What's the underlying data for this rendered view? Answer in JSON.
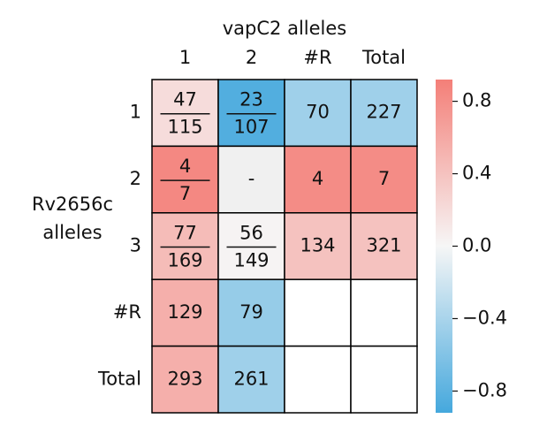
{
  "chart_data": {
    "type": "heatmap",
    "title": "vapC2 alleles",
    "ylabel": [
      "Rv2656c",
      "alleles"
    ],
    "columns": [
      "1",
      "2",
      "#R",
      "Total"
    ],
    "rows": [
      "1",
      "2",
      "3",
      "#R",
      "Total"
    ],
    "cells": [
      [
        {
          "numerator": 47,
          "denominator": 115
        },
        {
          "numerator": 23,
          "denominator": 107
        },
        70,
        227
      ],
      [
        {
          "numerator": 4,
          "denominator": 7
        },
        "-",
        4,
        7
      ],
      [
        {
          "numerator": 77,
          "denominator": 169
        },
        {
          "numerator": 56,
          "denominator": 149
        },
        134,
        321
      ],
      [
        129,
        79,
        null,
        null
      ],
      [
        293,
        261,
        null,
        null
      ]
    ],
    "values": [
      [
        0.2,
        -0.85,
        -0.45,
        -0.45
      ],
      [
        0.85,
        null,
        0.82,
        0.82
      ],
      [
        0.45,
        0.02,
        0.4,
        0.4
      ],
      [
        0.55,
        -0.5,
        null,
        null
      ],
      [
        0.55,
        -0.45,
        null,
        null
      ]
    ],
    "cmap": [
      "#45a8dd",
      "#f6f6f6",
      "#f47f78"
    ],
    "missing_color": "#f0f0f0",
    "clim": [
      -0.92,
      0.92
    ],
    "cticks": [
      {
        "value": -0.8,
        "label": "−0.8"
      },
      {
        "value": -0.4,
        "label": "−0.4"
      },
      {
        "value": 0,
        "label": "0.0"
      },
      0.4,
      0.8
    ]
  }
}
